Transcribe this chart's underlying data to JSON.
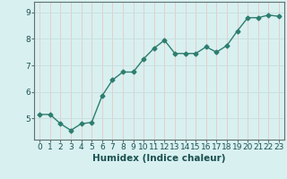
{
  "x": [
    0,
    1,
    2,
    3,
    4,
    5,
    6,
    7,
    8,
    9,
    10,
    11,
    12,
    13,
    14,
    15,
    16,
    17,
    18,
    19,
    20,
    21,
    22,
    23
  ],
  "y": [
    5.15,
    5.15,
    4.8,
    4.55,
    4.8,
    4.85,
    5.85,
    6.45,
    6.75,
    6.75,
    7.25,
    7.65,
    7.95,
    7.45,
    7.45,
    7.45,
    7.7,
    7.5,
    7.75,
    8.3,
    8.8,
    8.8,
    8.9,
    8.85
  ],
  "line_color": "#2e7d6e",
  "marker": "D",
  "marker_size": 2.5,
  "line_width": 1.0,
  "bg_color": "#d8f0f0",
  "grid_color_v": "#e8c8c8",
  "grid_color_h": "#c8dede",
  "xlabel": "Humidex (Indice chaleur)",
  "xlim": [
    -0.5,
    23.5
  ],
  "ylim": [
    4.2,
    9.4
  ],
  "yticks": [
    5,
    6,
    7,
    8,
    9
  ],
  "xtick_labels": [
    "0",
    "1",
    "2",
    "3",
    "4",
    "5",
    "6",
    "7",
    "8",
    "9",
    "10",
    "11",
    "12",
    "13",
    "14",
    "15",
    "16",
    "17",
    "18",
    "19",
    "20",
    "21",
    "22",
    "23"
  ],
  "xlabel_fontsize": 7.5,
  "tick_fontsize": 6.5
}
